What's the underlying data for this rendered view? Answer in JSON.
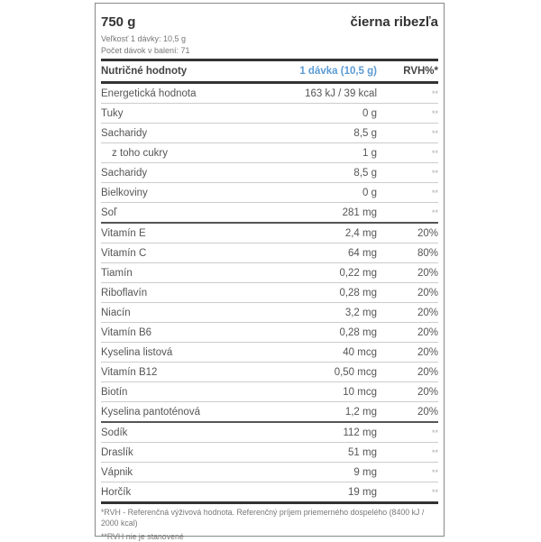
{
  "header": {
    "weight": "750 g",
    "flavor": "čierna ribezľa",
    "serving_size": "Veľkosť 1 dávky: 10,5 g",
    "servings": "Počet dávok v balení: 71"
  },
  "table_header": {
    "name": "Nutričné hodnoty",
    "per_serving": "1 dávka (10,5 g)",
    "rvh": "RVH%*"
  },
  "rows": [
    {
      "name": "Energetická hodnota",
      "value": "163 kJ / 39 kcal",
      "rvh": "**"
    },
    {
      "name": "Tuky",
      "value": "0 g",
      "rvh": "**"
    },
    {
      "name": "Sacharidy",
      "value": "8,5 g",
      "rvh": "**"
    },
    {
      "name": "z toho cukry",
      "value": "1 g",
      "rvh": "**"
    },
    {
      "name": "Sacharidy",
      "value": "8,5 g",
      "rvh": "**"
    },
    {
      "name": "Bielkoviny",
      "value": "0 g",
      "rvh": "**"
    },
    {
      "name": "Soľ",
      "value": "281 mg",
      "rvh": "**"
    },
    {
      "name": "Vitamín E",
      "value": "2,4 mg",
      "rvh": "20%"
    },
    {
      "name": "Vitamín C",
      "value": "64 mg",
      "rvh": "80%"
    },
    {
      "name": "Tiamín",
      "value": "0,22 mg",
      "rvh": "20%"
    },
    {
      "name": "Riboflavín",
      "value": "0,28 mg",
      "rvh": "20%"
    },
    {
      "name": "Niacín",
      "value": "3,2 mg",
      "rvh": "20%"
    },
    {
      "name": "Vitamín B6",
      "value": "0,28 mg",
      "rvh": "20%"
    },
    {
      "name": "Kyselina listová",
      "value": "40 mcg",
      "rvh": "20%"
    },
    {
      "name": "Vitamín B12",
      "value": "0,50 mcg",
      "rvh": "20%"
    },
    {
      "name": "Biotín",
      "value": "10 mcg",
      "rvh": "20%"
    },
    {
      "name": "Kyselina pantoténová",
      "value": "1,2 mg",
      "rvh": "20%"
    },
    {
      "name": "Sodík",
      "value": "112 mg",
      "rvh": "**"
    },
    {
      "name": "Draslík",
      "value": "51 mg",
      "rvh": "**"
    },
    {
      "name": "Vápnik",
      "value": "9 mg",
      "rvh": "**"
    },
    {
      "name": "Horčík",
      "value": "19 mg",
      "rvh": "**"
    }
  ],
  "footer": {
    "note1": "*RVH - Referenčná výživová hodnota. Referenčný príjem priemerného dospelého (8400 kJ / 2000 kcal)",
    "note2": "**RVH nie je stanovené"
  }
}
